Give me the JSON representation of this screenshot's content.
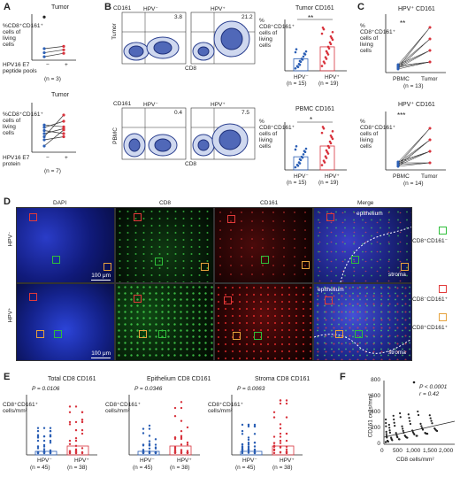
{
  "panelA": {
    "label": "A",
    "top": {
      "title": "Tumor",
      "ylabel": "%CD8⁺CD161⁺ cells of living cells",
      "xlabel": "HPV16 E7 peptide pools",
      "n": "(n = 3)",
      "minus": "−",
      "plus": "+"
    },
    "bottom": {
      "title": "Tumor",
      "ylabel": "%CD8⁺CD161⁺ cells of living cells",
      "xlabel": "HPV16 E7 protein",
      "n": "(n = 7)",
      "minus": "−",
      "plus": "+"
    }
  },
  "panelB": {
    "label": "B",
    "flow": {
      "cd161": "CD161",
      "cd8": "CD8",
      "tumor": "Tumor",
      "pbmc": "PBMC",
      "hpvneg": "HPV⁻",
      "hpvpos": "HPV⁺",
      "t_neg_val": "3.8",
      "t_pos_val": "21.2",
      "p_neg_val": "0.4",
      "p_pos_val": "7.5"
    },
    "tumor_bar": {
      "title": "Tumor CD161",
      "sig": "**",
      "ylabel": "% CD8⁺CD161⁺ cells of living cells",
      "c1": "HPV⁻",
      "c2": "HPV⁺",
      "n1": "(n = 15)",
      "n2": "(n = 19)"
    },
    "pbmc_bar": {
      "title": "PBMC CD161",
      "sig": "*",
      "ylabel": "% CD8⁺CD161⁺ cells of living cells",
      "c1": "HPV⁻",
      "c2": "HPV⁺",
      "n1": "(n = 15)",
      "n2": "(n = 19)"
    }
  },
  "panelC": {
    "label": "C",
    "top": {
      "title": "HPV⁺ CD161",
      "sig": "**",
      "ylabel": "% CD8⁺CD161⁺ cells of living cells",
      "c1": "PBMC",
      "c2": "Tumor",
      "n": "(n = 13)"
    },
    "bottom": {
      "title": "HPV⁺ CD161",
      "sig": "***",
      "ylabel": "% CD8⁺CD161⁺ cells of living cells",
      "c1": "PBMC",
      "c2": "Tumor",
      "n": "(n = 14)"
    }
  },
  "panelD": {
    "label": "D",
    "cols": [
      "DAPI",
      "CD8",
      "CD161",
      "Merge"
    ],
    "rows": [
      "HPV⁻",
      "HPV⁺"
    ],
    "scale": "100 μm",
    "epithelium": "epithelium",
    "stroma": "stroma",
    "legend": [
      "CD8⁺CD161⁻",
      "CD8⁻CD161⁺",
      "CD8⁺CD161⁺"
    ],
    "colors": {
      "green": "#2fbf3a",
      "red": "#e23a3a",
      "orange": "#e6a23c"
    }
  },
  "panelE": {
    "label": "E",
    "ylabel": "CD8⁺CD161⁺ cells/mm²",
    "plots": [
      {
        "title": "Total CD8 CD161",
        "p": "P = 0.0106",
        "c1": "HPV⁻",
        "c2": "HPV⁺",
        "n1": "(n = 45)",
        "n2": "(n = 38)"
      },
      {
        "title": "Epithelium CD8 CD161",
        "p": "P = 0.0346",
        "c1": "HPV⁻",
        "c2": "HPV⁺",
        "n1": "(n = 45)",
        "n2": "(n = 38)"
      },
      {
        "title": "Stroma CD8 CD161",
        "p": "P = 0.0063",
        "c1": "HPV⁻",
        "c2": "HPV⁺",
        "n1": "(n = 45)",
        "n2": "(n = 38)"
      }
    ]
  },
  "panelF": {
    "label": "F",
    "ylabel": "CD161 cells/mm²",
    "xlabel": "CD8 cells/mm²",
    "p": "P < 0.0001",
    "r": "r = 0.42",
    "yticks": [
      "800",
      "600",
      "400",
      "200",
      "0"
    ],
    "xticks": [
      "0",
      "500",
      "1,000",
      "1,500",
      "2,000"
    ]
  },
  "chart_data": [
    {
      "type": "line",
      "panel": "A-top",
      "title": "Tumor",
      "categories": [
        "−",
        "+"
      ],
      "ylim": [
        0,
        8
      ],
      "series": [
        {
          "values": [
            0.6,
            1.2
          ]
        },
        {
          "values": [
            1.3,
            1.8
          ]
        },
        {
          "values": [
            2.0,
            2.4
          ]
        }
      ],
      "outlier": 7.5
    },
    {
      "type": "line",
      "panel": "A-bottom",
      "title": "Tumor",
      "categories": [
        "−",
        "+"
      ],
      "ylim": [
        0,
        8
      ],
      "series": [
        {
          "values": [
            2.0,
            2.5
          ]
        },
        {
          "values": [
            3.5,
            3.0
          ]
        },
        {
          "values": [
            1.0,
            3.6
          ]
        },
        {
          "values": [
            4.0,
            5.0
          ]
        },
        {
          "values": [
            3.0,
            3.8
          ]
        },
        {
          "values": [
            4.4,
            4.1
          ]
        },
        {
          "values": [
            2.5,
            6.0
          ]
        }
      ]
    },
    {
      "type": "bar",
      "panel": "B-tumor",
      "title": "Tumor CD161",
      "categories": [
        "HPV⁻",
        "HPV⁺"
      ],
      "values": [
        7,
        14
      ],
      "ylim": [
        0,
        30
      ]
    },
    {
      "type": "bar",
      "panel": "B-pbmc",
      "title": "PBMC CD161",
      "categories": [
        "HPV⁻",
        "HPV⁺"
      ],
      "values": [
        2.2,
        4.0
      ],
      "ylim": [
        0,
        8
      ]
    },
    {
      "type": "scatter",
      "panel": "F",
      "xlabel": "CD8 cells/mm²",
      "ylabel": "CD161 cells/mm²",
      "xlim": [
        0,
        2000
      ],
      "ylim": [
        0,
        800
      ]
    }
  ]
}
